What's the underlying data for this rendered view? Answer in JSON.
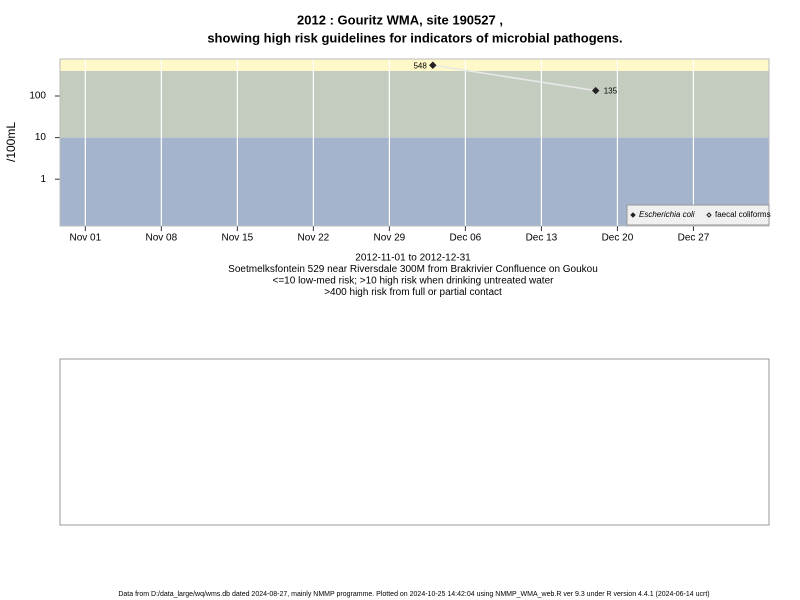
{
  "chart_data": {
    "type": "line",
    "title": "2012 : Gouritz WMA, site 190527 ,",
    "title2": "showing high risk guidelines for indicators of microbial pathogens.",
    "y_label": "/100mL",
    "subtitle_lines": [
      "2012-11-01 to 2012-12-31",
      "Soetmelksfontein 529 near Riversdale 300M from Brakrivier Confluence on Goukou",
      "<=10 low-med risk; >10 high risk when drinking untreated water",
      ">400 high risk from full or partial contact"
    ],
    "footer": "Data from D:/data_large/wq/wms.db dated 2024-08-27, mainly NMMP programme. Plotted on 2024-10-25 14:42:04 using NMMP_WMA_web.R ver 9.3 under R version 4.4.1 (2024-06-14 ucrt)",
    "log_y": true,
    "ylim": [
      0.075,
      775
    ],
    "yticks": [
      1,
      10,
      100
    ],
    "xlim": [
      "2012-10-29T16:00:00Z",
      "2013-01-02T23:00:00Z"
    ],
    "xticks": [
      {
        "value": "2012-11-01",
        "label": "Nov 01"
      },
      {
        "value": "2012-11-08",
        "label": "Nov 08"
      },
      {
        "value": "2012-11-15",
        "label": "Nov 15"
      },
      {
        "value": "2012-11-22",
        "label": "Nov 22"
      },
      {
        "value": "2012-11-29",
        "label": "Nov 29"
      },
      {
        "value": "2012-12-06",
        "label": "Dec 06"
      },
      {
        "value": "2012-12-13",
        "label": "Dec 13"
      },
      {
        "value": "2012-12-20",
        "label": "Dec 20"
      },
      {
        "value": "2012-12-27",
        "label": "Dec 27"
      }
    ],
    "thresholds": [
      10,
      400
    ],
    "band_colors": [
      "#a3b4cc",
      "#c4ccbf",
      "#fff8c8"
    ],
    "grid": true,
    "legend_position": "bottom-right",
    "x": [
      "2012-12-03",
      "2012-12-18"
    ],
    "series": [
      {
        "name": "Escherichia coli",
        "color": "#222222",
        "marker": "filled",
        "values": [
          548,
          135
        ]
      },
      {
        "name": "faecal coliforms",
        "color": "#222222",
        "marker": "open",
        "values": [
          null,
          null
        ]
      }
    ]
  }
}
